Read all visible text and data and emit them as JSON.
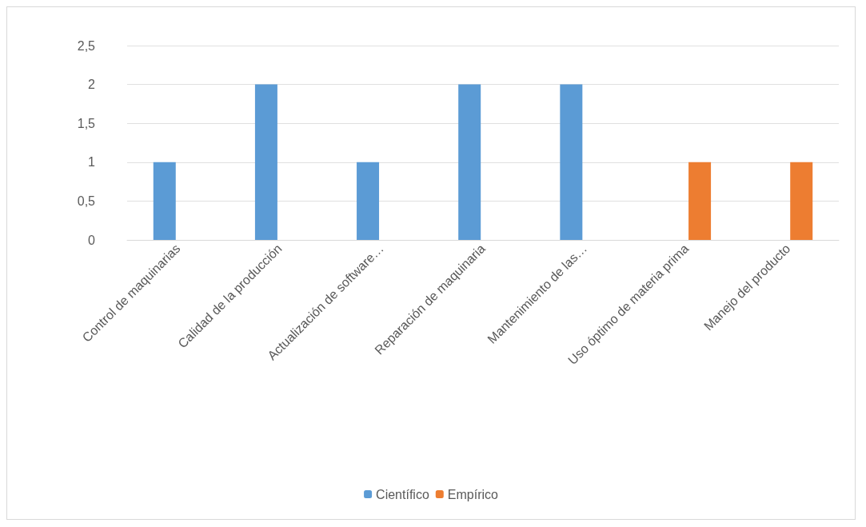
{
  "chart_data": {
    "type": "bar",
    "categories": [
      "Control de maquinarias",
      "Calidad de la producción",
      "Actualización de software…",
      "Reparación de maquinaria",
      "Mantenimiento de las…",
      "Uso óptimo de materia prima",
      "Manejo del producto"
    ],
    "series": [
      {
        "name": "Científico",
        "color": "#5b9bd5",
        "values": [
          1,
          2,
          1,
          2,
          2,
          null,
          null
        ]
      },
      {
        "name": "Empírico",
        "color": "#ed7d31",
        "values": [
          null,
          null,
          null,
          null,
          null,
          1,
          1
        ]
      }
    ],
    "ylim": [
      0,
      2.5
    ],
    "yticks": [
      0,
      {
        "value": 0.5,
        "label": "0,5"
      },
      1,
      {
        "value": 1.5,
        "label": "1,5"
      },
      2,
      {
        "value": 2.5,
        "label": "2,5"
      }
    ],
    "grid": "y",
    "legend": "bottom"
  }
}
